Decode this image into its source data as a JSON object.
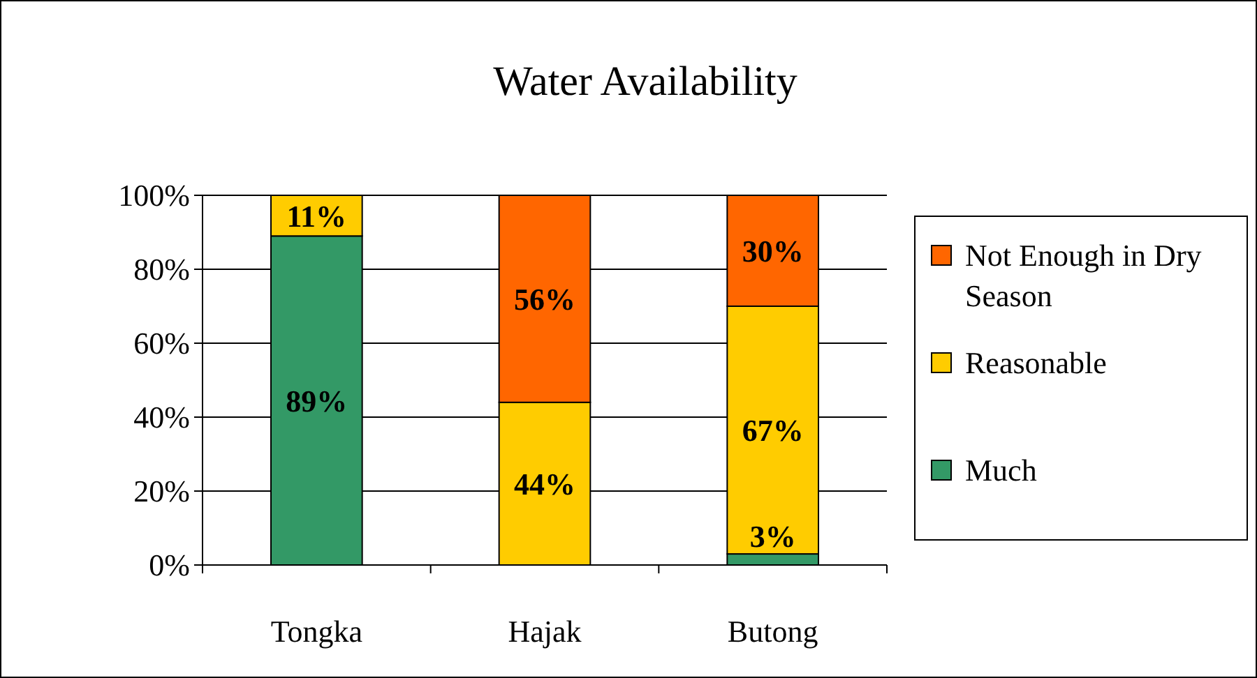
{
  "chart_data": {
    "type": "bar",
    "title": "Water Availability",
    "stacked": true,
    "categories": [
      "Tongka",
      "Hajak",
      "Butong"
    ],
    "series": [
      {
        "name": "Much",
        "color": "#339966",
        "values": [
          89,
          0,
          3
        ],
        "value_labels": [
          "89%",
          null,
          "3%"
        ]
      },
      {
        "name": "Reasonable",
        "color": "#ffcc00",
        "values": [
          11,
          44,
          67
        ],
        "value_labels": [
          "11%",
          "44%",
          "67%"
        ]
      },
      {
        "name": "Not Enough in Dry Season",
        "color": "#ff6600",
        "values": [
          0,
          56,
          30
        ],
        "value_labels": [
          null,
          "56%",
          "30%"
        ]
      }
    ],
    "ylim": [
      0,
      100
    ],
    "yticks": [
      {
        "value": 0,
        "label": "0%"
      },
      {
        "value": 20,
        "label": "20%"
      },
      {
        "value": 40,
        "label": "40%"
      },
      {
        "value": 60,
        "label": "60%"
      },
      {
        "value": 80,
        "label": "80%"
      },
      {
        "value": 100,
        "label": "100%"
      }
    ],
    "grid": "y",
    "legend": "right"
  }
}
